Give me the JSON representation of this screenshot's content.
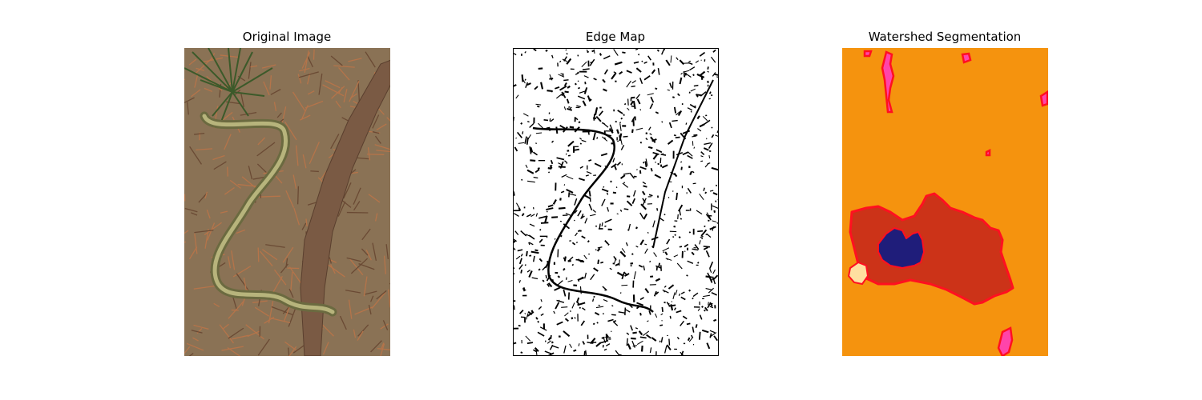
{
  "panels": [
    {
      "title": "Original Image"
    },
    {
      "title": "Edge Map"
    },
    {
      "title": "Watershed Segmentation"
    }
  ],
  "colors": {
    "background": "#ffffff",
    "soil": "#8a7255",
    "needle": "#b5744a",
    "pine": "#3c5a2a",
    "branch": "#7a5a44",
    "snake": "#9c9a64",
    "edge_fg": "#000000",
    "seg_background": "#f5930e",
    "seg_region": "#cc3318",
    "seg_blob": "#1f1d7a",
    "seg_boundary": "#ff1020",
    "seg_light": "#ffe0a0",
    "seg_pink": "#ff44aa"
  }
}
